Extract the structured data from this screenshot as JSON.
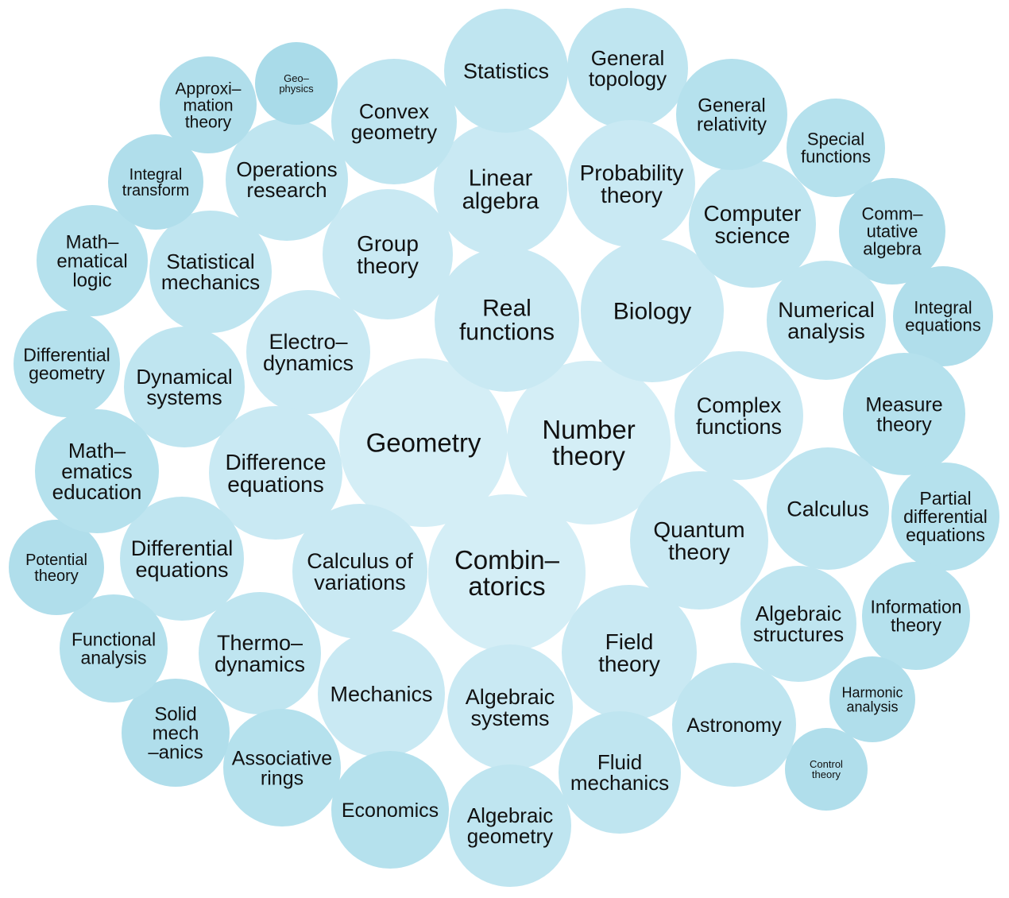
{
  "bubbles": [
    {
      "lines": [
        "Geometry"
      ],
      "shade": "#d4eef6"
    },
    {
      "lines": [
        "Number",
        "theory"
      ],
      "shade": "#d4eef6"
    },
    {
      "lines": [
        "Combin–",
        "atorics"
      ],
      "shade": "#d4eef6"
    },
    {
      "lines": [
        "Real",
        "functions"
      ],
      "shade": "#c9e9f3"
    },
    {
      "lines": [
        "Biology"
      ],
      "shade": "#c9e9f3"
    },
    {
      "lines": [
        "Linear",
        "algebra"
      ],
      "shade": "#c9e9f3"
    },
    {
      "lines": [
        "Statistics"
      ],
      "shade": "#bfe5f0"
    },
    {
      "lines": [
        "General",
        "topology"
      ],
      "shade": "#bfe5f0"
    },
    {
      "lines": [
        "Probability",
        "theory"
      ],
      "shade": "#c9e9f3"
    },
    {
      "lines": [
        "Convex",
        "geometry"
      ],
      "shade": "#bfe5f0"
    },
    {
      "lines": [
        "Group",
        "theory"
      ],
      "shade": "#c9e9f3"
    },
    {
      "lines": [
        "Operations",
        "research"
      ],
      "shade": "#bfe5f0"
    },
    {
      "lines": [
        "Electro–",
        "dynamics"
      ],
      "shade": "#c9e9f3"
    },
    {
      "lines": [
        "Statistical",
        "mechanics"
      ],
      "shade": "#bfe5f0"
    },
    {
      "lines": [
        "Dynamical",
        "systems"
      ],
      "shade": "#bfe5f0"
    },
    {
      "lines": [
        "Difference",
        "equations"
      ],
      "shade": "#c9e9f3"
    },
    {
      "lines": [
        "Calculus of",
        "variations"
      ],
      "shade": "#c9e9f3"
    },
    {
      "lines": [
        "Differential",
        "equations"
      ],
      "shade": "#bfe5f0"
    },
    {
      "lines": [
        "Thermo–",
        "dynamics"
      ],
      "shade": "#bfe5f0"
    },
    {
      "lines": [
        "Mechanics"
      ],
      "shade": "#c9e9f3"
    },
    {
      "lines": [
        "Algebraic",
        "systems"
      ],
      "shade": "#c9e9f3"
    },
    {
      "lines": [
        "Field",
        "theory"
      ],
      "shade": "#c9e9f3"
    },
    {
      "lines": [
        "Quantum",
        "theory"
      ],
      "shade": "#c9e9f3"
    },
    {
      "lines": [
        "Complex",
        "functions"
      ],
      "shade": "#c9e9f3"
    },
    {
      "lines": [
        "Computer",
        "science"
      ],
      "shade": "#bfe5f0"
    },
    {
      "lines": [
        "General",
        "relativity"
      ],
      "shade": "#b5e1ed"
    },
    {
      "lines": [
        "Special",
        "functions"
      ],
      "shade": "#b5e1ed"
    },
    {
      "lines": [
        "Comm–",
        "utative",
        "algebra"
      ],
      "shade": "#b0deeb"
    },
    {
      "lines": [
        "Numerical",
        "analysis"
      ],
      "shade": "#bfe5f0"
    },
    {
      "lines": [
        "Integral",
        "equations"
      ],
      "shade": "#b0deeb"
    },
    {
      "lines": [
        "Measure",
        "theory"
      ],
      "shade": "#b5e1ed"
    },
    {
      "lines": [
        "Calculus"
      ],
      "shade": "#bfe5f0"
    },
    {
      "lines": [
        "Partial",
        "differential",
        "equations"
      ],
      "shade": "#b5e1ed"
    },
    {
      "lines": [
        "Algebraic",
        "structures"
      ],
      "shade": "#bfe5f0"
    },
    {
      "lines": [
        "Information",
        "theory"
      ],
      "shade": "#b5e1ed"
    },
    {
      "lines": [
        "Harmonic",
        "analysis"
      ],
      "shade": "#b0deeb"
    },
    {
      "lines": [
        "Control",
        "theory"
      ],
      "shade": "#b0deeb"
    },
    {
      "lines": [
        "Astronomy"
      ],
      "shade": "#bfe5f0"
    },
    {
      "lines": [
        "Fluid",
        "mechanics"
      ],
      "shade": "#bfe5f0"
    },
    {
      "lines": [
        "Algebraic",
        "geometry"
      ],
      "shade": "#bfe5f0"
    },
    {
      "lines": [
        "Economics"
      ],
      "shade": "#b5e1ed"
    },
    {
      "lines": [
        "Associative",
        "rings"
      ],
      "shade": "#b5e1ed"
    },
    {
      "lines": [
        "Solid",
        "mech",
        "–anics"
      ],
      "shade": "#b0deeb"
    },
    {
      "lines": [
        "Functional",
        "analysis"
      ],
      "shade": "#b5e1ed"
    },
    {
      "lines": [
        "Potential",
        "theory"
      ],
      "shade": "#b0deeb"
    },
    {
      "lines": [
        "Math–",
        "ematics",
        "education"
      ],
      "shade": "#b5e1ed"
    },
    {
      "lines": [
        "Differential",
        "geometry"
      ],
      "shade": "#b5e1ed"
    },
    {
      "lines": [
        "Math–",
        "ematical",
        "logic"
      ],
      "shade": "#b5e1ed"
    },
    {
      "lines": [
        "Integral",
        "transform"
      ],
      "shade": "#b0deeb"
    },
    {
      "lines": [
        "Approxi–",
        "mation",
        "theory"
      ],
      "shade": "#b0deeb"
    },
    {
      "lines": [
        "Geo–",
        "physics"
      ],
      "shade": "#a9dbe9"
    }
  ]
}
